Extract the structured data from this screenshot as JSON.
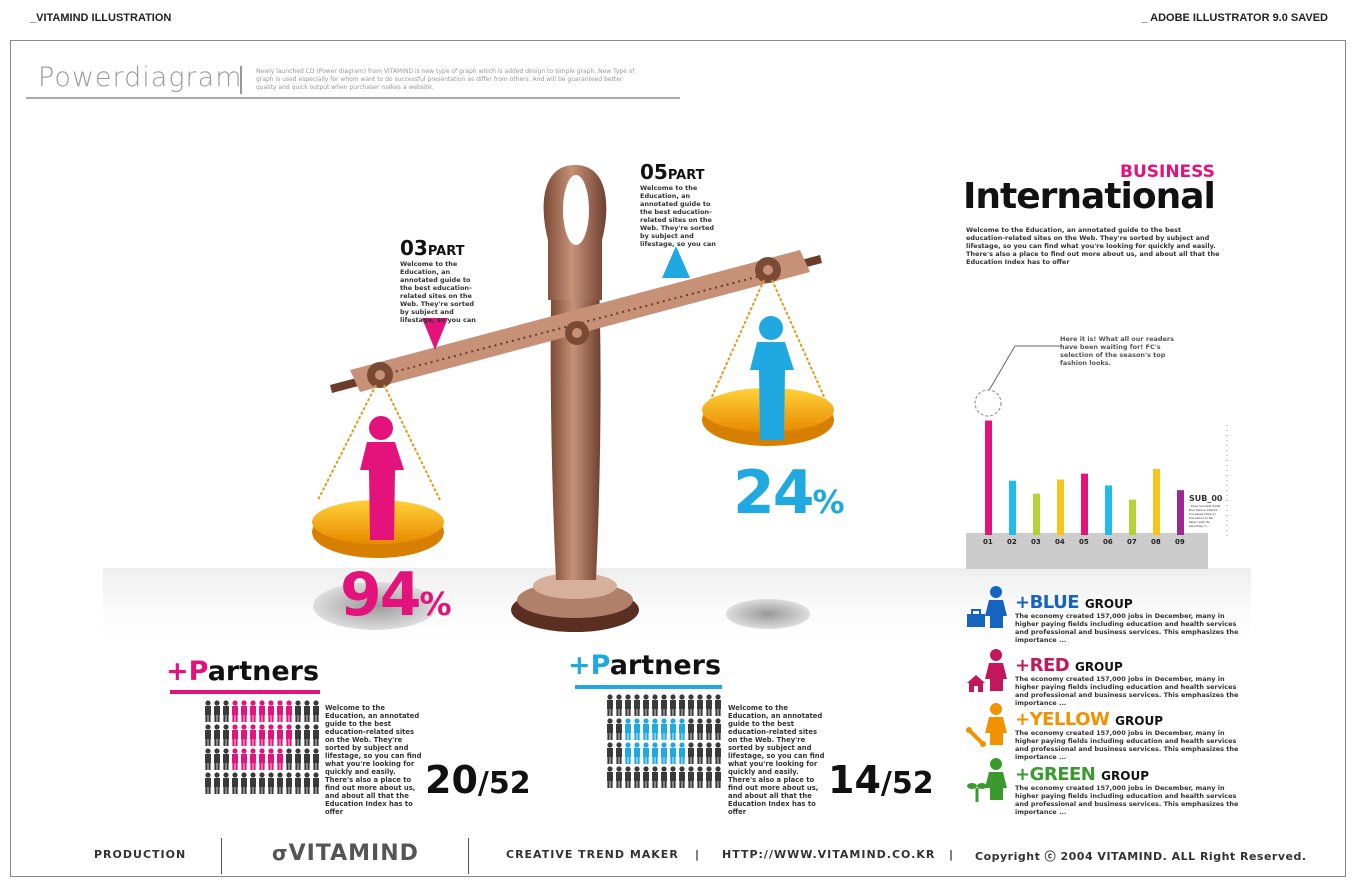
{
  "header": {
    "left": "_VITAMIND ILLUSTRATION",
    "right": "_ ADOBE ILLUSTRATOR 9.0 SAVED"
  },
  "powerdiagram": {
    "title": "Powerdiagram",
    "desc": "Newly launched CD (Power diagram) from VITAMIND is new type of graph which is added design to simple graph. New Type of graph is used especially for whom want to do successful presentation as differ from others. And will be guaranteed better quality and quick output when purchaser makes a website."
  },
  "scale": {
    "left_part": {
      "num": "03",
      "unit": "PART",
      "text": "Welcome to the Education, an annotated guide to the best education-related sites on the Web. They're sorted by subject and lifestage, so you can"
    },
    "right_part": {
      "num": "05",
      "unit": "PART",
      "text": "Welcome to the Education, an annotated guide to the best education-related sites on the Web. They're sorted by subject and lifestage, so you can"
    },
    "left_pct": {
      "value": "94",
      "unit": "%"
    },
    "right_pct": {
      "value": "24",
      "unit": "%"
    }
  },
  "business": {
    "kicker": "BUSINESS",
    "title": "International",
    "desc": "Welcome to the Education, an annotated guide to the best education-related sites on the Web. They're sorted by subject and lifestage, so you can find what you're looking for quickly and easily. There's also a place to find out more about us, and about all that the Education Index has to offer",
    "callout": "Here it is! What all our readers have been waiting for! FC's selection of the season's top fashion looks.",
    "sub_label": "SUB_00",
    "sub_text": "· Pope Sundeal 9148 Boe Sleave Infante Increases Hoke in Education to Be Taken with Its Aworthey 7..."
  },
  "chart_data": {
    "type": "bar",
    "categories": [
      "01",
      "02",
      "03",
      "04",
      "05",
      "06",
      "07",
      "08",
      "09"
    ],
    "values": [
      97,
      46,
      35,
      47,
      52,
      42,
      30,
      56,
      38
    ],
    "colors": [
      "#e4127b",
      "#1fbde9",
      "#b5d334",
      "#f5c51b",
      "#e4127b",
      "#1fbde9",
      "#b5d334",
      "#f5c51b",
      "#9c2a8e"
    ],
    "ylim": [
      0,
      100
    ]
  },
  "partners": [
    {
      "plus": "+P",
      "word": "artners",
      "text": "Welcome to the Education, an annotated guide to the best education-related sites on the Web. They're sorted by subject and lifestage, so you can find what you're looking for quickly and easily. There's also a place to find out more about us, and about all that the Education Index has to offer",
      "count": "20",
      "total": "/52",
      "accent": "#e4127b"
    },
    {
      "plus": "+P",
      "word": "artners",
      "text": "Welcome to the Education, an annotated guide to the best education-related sites on the Web. They're sorted by subject and lifestage, so you can find what you're looking for quickly and easily. There's also a place to find out more about us, and about all that the Education Index has to offer",
      "count": "14",
      "total": "/52",
      "accent": "#1fa9e0"
    }
  ],
  "groups": [
    {
      "name": "+BLUE",
      "group": "GROUP",
      "color": "#1565c0",
      "icon": "briefcase-icon",
      "text": "The economy created 157,000 jobs in December, many in higher paying fields including education and health services and professional and business services. This emphasizes the importance ..."
    },
    {
      "name": "+RED",
      "group": "GROUP",
      "color": "#c2185b",
      "icon": "house-icon",
      "text": "The economy created 157,000 jobs in December, many in higher paying fields including education and health services and professional and business services. This emphasizes the importance ..."
    },
    {
      "name": "+YELLOW",
      "group": "GROUP",
      "color": "#f39200",
      "icon": "bone-icon",
      "text": "The economy created 157,000 jobs in December, many in higher paying fields including education and health services and professional and business services. This emphasizes the importance ..."
    },
    {
      "name": "+GREEN",
      "group": "GROUP",
      "color": "#3a9a2e",
      "icon": "sprout-icon",
      "text": "The economy created 157,000 jobs in December, many in higher paying fields including education and health services and professional and business services. This emphasizes the importance ..."
    }
  ],
  "footer": {
    "production": "PRODUCTION",
    "logo": "VITAMIND",
    "trend": "CREATIVE TREND MAKER",
    "url": "HTTP://WWW.VITAMIND.CO.KR",
    "copyright": "Copyright ⓒ 2004 VITAMIND. ALL Right Reserved."
  }
}
